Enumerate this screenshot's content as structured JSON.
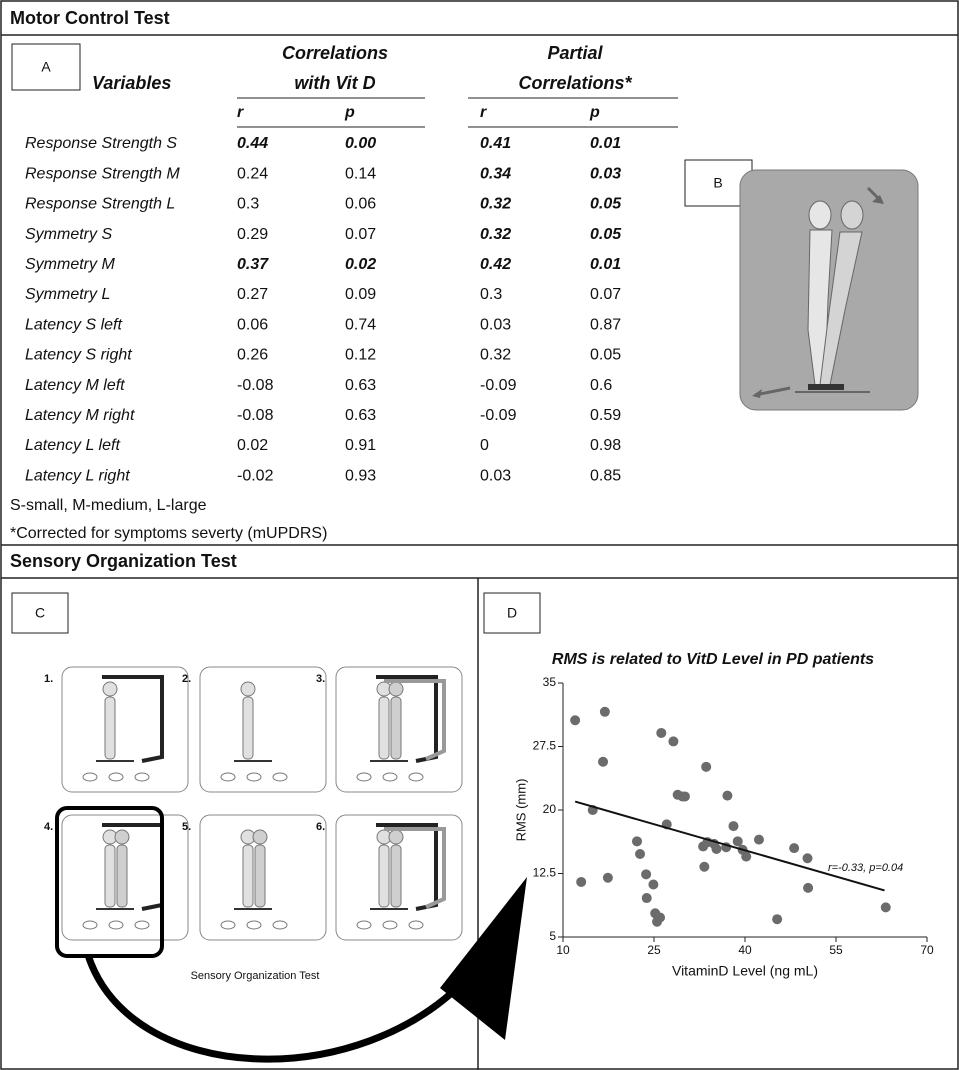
{
  "header": {
    "motor_title": "Motor Control Test",
    "sensory_title": "Sensory Organization Test"
  },
  "panel_labels": [
    "A",
    "B",
    "C",
    "D"
  ],
  "table": {
    "columns": {
      "variables": "Variables",
      "vitd": [
        "Correlations",
        "with Vit D"
      ],
      "partial": [
        "Partial",
        "Correlations*"
      ],
      "sub": [
        "r",
        "p",
        "r",
        "p"
      ]
    },
    "rows": [
      [
        "Response Strength S",
        "0.44",
        "0.00",
        "0.41",
        "0.01"
      ],
      [
        "Response Strength M",
        "0.24",
        "0.14",
        "0.34",
        "0.03"
      ],
      [
        "Response Strength L",
        "0.3",
        "0.06",
        "0.32",
        "0.05"
      ],
      [
        "Symmetry S",
        "0.29",
        "0.07",
        "0.32",
        "0.05"
      ],
      [
        "Symmetry M",
        "0.37",
        "0.02",
        "0.42",
        "0.01"
      ],
      [
        "Symmetry L",
        "0.27",
        "0.09",
        "0.3",
        "0.07"
      ],
      [
        "Latency S left",
        "0.06",
        "0.74",
        "0.03",
        "0.87"
      ],
      [
        "Latency S right",
        "0.26",
        "0.12",
        "0.32",
        "0.05"
      ],
      [
        "Latency M left",
        "-0.08",
        "0.63",
        "-0.09",
        "0.6"
      ],
      [
        "Latency M right",
        "-0.08",
        "0.63",
        "-0.09",
        "0.59"
      ],
      [
        "Latency L left",
        "0.02",
        "0.91",
        "0",
        "0.98"
      ],
      [
        "Latency L right",
        "-0.02",
        "0.93",
        "0.03",
        "0.85"
      ]
    ],
    "significant": [
      [
        true,
        true
      ],
      [
        false,
        true
      ],
      [
        false,
        true
      ],
      [
        false,
        true
      ],
      [
        true,
        true
      ],
      [
        false,
        false
      ],
      [
        false,
        false
      ],
      [
        false,
        false
      ],
      [
        false,
        false
      ],
      [
        false,
        false
      ],
      [
        false,
        false
      ],
      [
        false,
        false
      ]
    ],
    "notes": [
      "S-small, M-medium, L-large",
      "*Corrected for symptoms severty (mUPDRS)"
    ]
  },
  "sot": {
    "caption": "Sensory Organization Test",
    "conditions": [
      "1.",
      "2.",
      "3.",
      "4.",
      "5.",
      "6."
    ]
  },
  "chart_data": {
    "type": "scatter",
    "title": "RMS is related to VitD Level in PD patients",
    "x_label": "VitaminD Level (ng mL)",
    "y_label": "RMS (mm)",
    "annotation": "r=-0.33, p=0.04",
    "color": "#6b6b6b",
    "x": [
      12,
      16.9,
      16.6,
      26.2,
      28.2,
      14.9,
      30.1,
      33.6,
      27.1,
      28.9,
      29.7,
      33.8,
      34.9,
      35.3,
      33.1,
      33.3,
      36.9,
      37.1,
      38.1,
      38.8,
      39.6,
      40.2,
      42.3,
      48.1,
      50.3,
      50.4,
      13,
      17.4,
      23.8,
      23.7,
      24.9,
      25.2,
      25.5,
      26,
      45.3,
      63.2,
      22.7,
      22.2
    ],
    "y": [
      30.6,
      31.6,
      25.7,
      29.1,
      28.1,
      20,
      21.6,
      25.1,
      18.3,
      21.8,
      21.6,
      16.2,
      16,
      15.4,
      15.7,
      13.3,
      15.6,
      21.7,
      18.1,
      16.3,
      15.3,
      14.5,
      16.5,
      15.5,
      14.3,
      10.8,
      11.5,
      12,
      9.6,
      12.4,
      11.2,
      7.8,
      6.8,
      7.3,
      7.1,
      8.5,
      14.8,
      16.3
    ],
    "trendline": {
      "x": [
        12,
        63
      ],
      "y": [
        21,
        10.5
      ]
    },
    "xlim": [
      10,
      70
    ],
    "xticks": [
      10,
      25,
      40,
      55,
      70
    ],
    "ylim": [
      5,
      35
    ],
    "yticks": [
      5,
      12.5,
      20,
      27.5,
      35
    ]
  }
}
